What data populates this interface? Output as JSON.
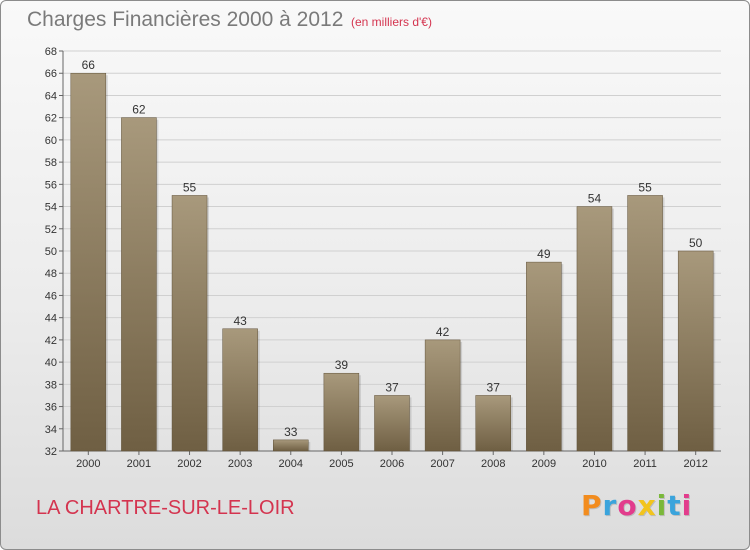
{
  "title": "Charges Financières 2000 à 2012",
  "subtitle": "(en milliers d'€)",
  "commune": "LA CHARTRE-SUR-LE-LOIR",
  "brand": {
    "letters": [
      "P",
      "r",
      "o",
      "x",
      "i",
      "t",
      "i"
    ],
    "colors": [
      "#f28c1e",
      "#3aa4dc",
      "#e23c8c",
      "#f2c41e",
      "#7ab83a",
      "#3aa4dc",
      "#e23c8c"
    ]
  },
  "colors": {
    "bar_top": "#a8997c",
    "bar_bottom": "#6f5f43",
    "grid": "#d0d0d0",
    "axis_text": "#333333"
  },
  "chart_data": {
    "type": "bar",
    "categories": [
      "2000",
      "2001",
      "2002",
      "2003",
      "2004",
      "2005",
      "2006",
      "2007",
      "2008",
      "2009",
      "2010",
      "2011",
      "2012"
    ],
    "values": [
      66,
      62,
      55,
      43,
      33,
      39,
      37,
      42,
      37,
      49,
      54,
      55,
      50
    ],
    "ylim": [
      32,
      68
    ],
    "ytick_step": 2,
    "grid": true,
    "xlabel": "",
    "ylabel": ""
  }
}
